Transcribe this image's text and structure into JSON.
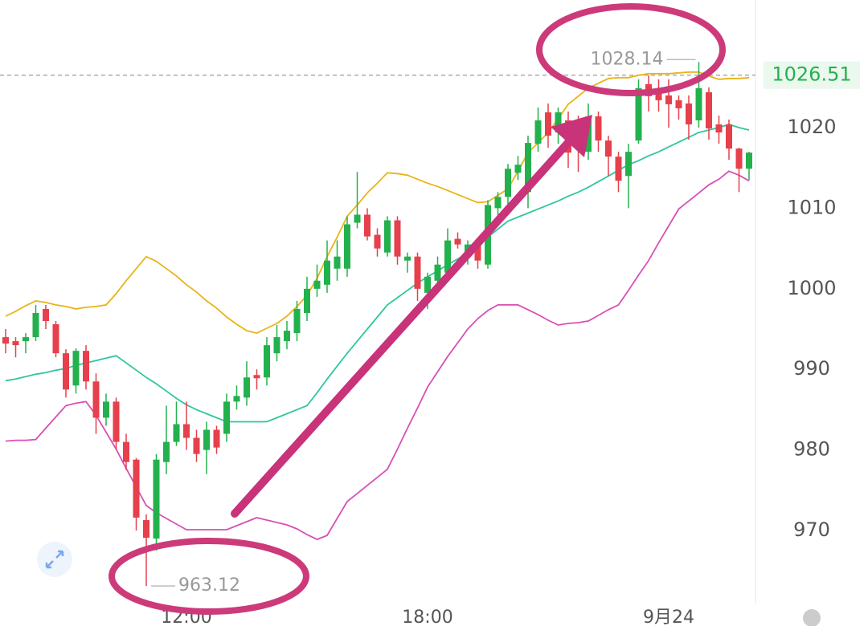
{
  "chart_data": {
    "type": "candlestick",
    "categories": [
      null,
      null,
      null,
      null,
      null,
      null,
      null,
      null,
      null,
      null,
      null,
      null,
      null,
      null,
      null,
      null,
      null,
      null,
      "12:00",
      null,
      null,
      null,
      null,
      null,
      null,
      null,
      null,
      null,
      null,
      null,
      null,
      null,
      null,
      null,
      null,
      null,
      null,
      null,
      null,
      null,
      null,
      null,
      "18:00",
      null,
      null,
      null,
      null,
      null,
      null,
      null,
      null,
      null,
      null,
      null,
      null,
      null,
      null,
      null,
      null,
      null,
      null,
      null,
      null,
      null,
      null,
      null,
      "9月24",
      null,
      null,
      null,
      null,
      null,
      null,
      null,
      null
    ],
    "ohlc": {
      "open": [
        994.0,
        993.5,
        993.5,
        994,
        997.5,
        995.6,
        992,
        988,
        992.3,
        988.5,
        984,
        986,
        981,
        978.8,
        971.3,
        969,
        978.5,
        981,
        983.2,
        981.5,
        980,
        982.5,
        982,
        986,
        986.5,
        989.3,
        989,
        992,
        993.5,
        994.5,
        997,
        1000,
        1000.5,
        1002.5,
        1002.5,
        1008.2,
        1009.2,
        1006.7,
        1004.5,
        1008.5,
        1003.5,
        1004,
        999.5,
        1001,
        1002,
        1006.2,
        1004,
        1005.4,
        1003,
        1010,
        1011.4,
        1014.4,
        1012,
        1018,
        1021.9,
        1019.4,
        1020.9,
        1020.9,
        1017,
        1021.4,
        1018.4,
        1016.4,
        1014,
        1018.4,
        1025.4,
        1024.4,
        1024,
        1023.4,
        1023,
        1020.9,
        1024.4,
        1020.4,
        1020.4,
        1017.4,
        1014.9
      ],
      "high": [
        995,
        994,
        994.5,
        998,
        998,
        996,
        992.5,
        992.6,
        993,
        989.5,
        987,
        986.5,
        982,
        979,
        972,
        979.5,
        985.5,
        986,
        986,
        982.5,
        983.5,
        983,
        987,
        988,
        991,
        990,
        994,
        995.5,
        996,
        998.5,
        1001.5,
        1003,
        1006,
        1006,
        1009,
        1014.5,
        1010,
        1007.5,
        1009,
        1009,
        1004.5,
        1004.5,
        1002,
        1004,
        1007.5,
        1007,
        1006,
        1006,
        1011,
        1012,
        1015.5,
        1016.5,
        1019,
        1022.5,
        1023,
        1022.5,
        1022,
        1021.5,
        1023,
        1022,
        1019,
        1017,
        1018,
        1026,
        1026.5,
        1026,
        1026,
        1024,
        1024,
        1028.14,
        1025,
        1021.5,
        1021,
        1017.5,
        1017
      ],
      "low": [
        992,
        991.5,
        992,
        993.5,
        995,
        991.5,
        986.5,
        987,
        987.5,
        982,
        983,
        980,
        977.5,
        970,
        963.12,
        967.5,
        977,
        980.5,
        980,
        978.5,
        977,
        979.5,
        981,
        985,
        985.5,
        987.5,
        988,
        991,
        992.5,
        993.5,
        996,
        999,
        999.5,
        1001,
        1001.5,
        1007.5,
        1006,
        1004,
        1004,
        1003,
        1002,
        998.5,
        997.5,
        1000,
        1001,
        1005,
        1003,
        1002.5,
        1002.5,
        1009,
        1010.5,
        1013.5,
        1010,
        1017,
        1017.5,
        1018,
        1015,
        1014.5,
        1016,
        1017,
        1014,
        1012,
        1010,
        1018,
        1022,
        1022,
        1020,
        1021,
        1018.5,
        1020,
        1018.5,
        1018,
        1016,
        1012,
        1013.5
      ],
      "close": [
        993.2,
        993,
        994,
        997,
        996,
        992,
        987.5,
        992.3,
        988.5,
        984,
        986,
        981,
        978.5,
        971.6,
        969.1,
        978.8,
        981,
        983.2,
        981.5,
        979.5,
        982.5,
        980.3,
        986,
        986.7,
        989,
        988.9,
        993,
        994,
        994.8,
        997.5,
        1000,
        1001,
        1003.5,
        1004,
        1008,
        1009.2,
        1006.5,
        1005,
        1008.5,
        1004,
        1004,
        1000,
        1001.5,
        1003,
        1006,
        1005.5,
        1005.5,
        1003.5,
        1010.4,
        1011.4,
        1014.9,
        1015.4,
        1018.1,
        1020.9,
        1019,
        1021.9,
        1016.9,
        1018,
        1021.4,
        1018.4,
        1016.4,
        1013.4,
        1017,
        1024.9,
        1023.9,
        1023.4,
        1022.9,
        1022.4,
        1020.4,
        1024.9,
        1019.9,
        1019.4,
        1017.4,
        1014.9,
        1016.9
      ]
    },
    "up_color": "#23b14d",
    "down_color": "#e5404c",
    "bands": [
      {
        "color": "#e9b416",
        "values": [
          996.6,
          997.2,
          997.9,
          998.5,
          998.3,
          998.0,
          997.8,
          997.5,
          997.7,
          997.8,
          998.0,
          999.4,
          1001.0,
          1002.5,
          1004.0,
          1003.4,
          1002.5,
          1001.6,
          1000.5,
          999.6,
          998.5,
          997.6,
          996.5,
          995.6,
          994.8,
          994.5,
          995.1,
          995.7,
          996.6,
          997.8,
          999.2,
          1001.3,
          1004.0,
          1006.4,
          1009.0,
          1010.4,
          1011.9,
          1013.1,
          1014.4,
          1014.3,
          1014.1,
          1013.6,
          1013.1,
          1012.7,
          1012.2,
          1011.7,
          1011.2,
          1010.7,
          1010.8,
          1011.6,
          1012.4,
          1014.6,
          1016.9,
          1018.1,
          1019.4,
          1021.1,
          1022.9,
          1023.9,
          1024.9,
          1025.5,
          1026.1,
          1026.2,
          1026.2,
          1026.5,
          1026.7,
          1026.7,
          1026.7,
          1026.8,
          1026.9,
          1026.9,
          1026.4,
          1026.0,
          1026.1,
          1026.1,
          1026.2
        ]
      },
      {
        "color": "#2fc6a0",
        "values": [
          988.6,
          988.8,
          989.1,
          989.4,
          989.6,
          989.9,
          990.1,
          990.5,
          990.8,
          991.1,
          991.4,
          991.7,
          990.8,
          989.9,
          989.0,
          988.2,
          987.3,
          986.4,
          985.6,
          985.0,
          984.5,
          984.0,
          983.5,
          983.5,
          983.5,
          983.5,
          983.5,
          984.0,
          984.5,
          985.0,
          985.5,
          987.1,
          988.8,
          990.4,
          992.0,
          993.5,
          995.0,
          996.5,
          998.0,
          998.9,
          999.8,
          1000.7,
          1001.5,
          1002.2,
          1003.0,
          1003.7,
          1004.5,
          1005.4,
          1006.4,
          1007.4,
          1008.4,
          1008.9,
          1009.4,
          1009.9,
          1010.4,
          1010.9,
          1011.5,
          1012.0,
          1012.6,
          1013.3,
          1014.0,
          1014.7,
          1015.4,
          1015.9,
          1016.5,
          1017.0,
          1017.6,
          1018.2,
          1018.8,
          1019.4,
          1019.7,
          1020.0,
          1020.4,
          1020.0,
          1019.7
        ]
      },
      {
        "color": "#d84fb6",
        "values": [
          981.1,
          981.2,
          981.2,
          981.3,
          982.7,
          984.1,
          985.5,
          985.8,
          986.0,
          984.3,
          982.2,
          980.1,
          977.7,
          975.4,
          973.1,
          972.2,
          971.5,
          970.8,
          970.1,
          970.1,
          970.1,
          970.1,
          970.1,
          970.6,
          971.1,
          971.6,
          971.3,
          971.0,
          970.7,
          970.2,
          969.5,
          968.9,
          969.4,
          971.5,
          973.6,
          974.6,
          975.6,
          976.6,
          977.6,
          980.1,
          982.7,
          985.2,
          987.8,
          989.7,
          991.6,
          993.3,
          995.0,
          996.3,
          997.3,
          998.0,
          998.0,
          998.0,
          997.4,
          996.8,
          996.1,
          995.5,
          995.7,
          995.8,
          996.0,
          996.7,
          997.4,
          998.0,
          999.8,
          1001.7,
          1003.5,
          1005.7,
          1007.8,
          1009.9,
          1010.9,
          1011.9,
          1012.9,
          1013.6,
          1014.6,
          1014.1,
          1013.4
        ]
      }
    ],
    "current_price": 1026.51,
    "ylim": [
      960.94,
      1035.84
    ],
    "yticks": [
      970,
      980,
      990,
      1000,
      1010,
      1020
    ],
    "grid": false
  }
}
